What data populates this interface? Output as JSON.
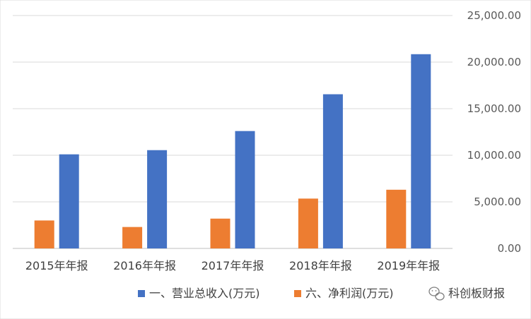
{
  "chart_data": {
    "type": "bar",
    "categories": [
      "2015年年报",
      "2016年年报",
      "2017年年报",
      "2018年年报",
      "2019年年报"
    ],
    "series": [
      {
        "name": "六、净利润(万元)",
        "color": "#ED7D31",
        "values": [
          3000,
          2300,
          3200,
          5350,
          6300
        ]
      },
      {
        "name": "一、营业总收入(万元)",
        "color": "#4472C4",
        "values": [
          10100,
          10550,
          12600,
          16550,
          20850
        ]
      }
    ],
    "yticks": [
      "0.00",
      "5,000.00",
      "10,000.00",
      "15,000.00",
      "20,000.00",
      "25,000.00"
    ],
    "ylim": [
      0,
      25000
    ],
    "grid": true,
    "y_axis_side": "right",
    "legend_position": "bottom"
  },
  "legend": {
    "items": [
      {
        "label": "一、营业总收入(万元)",
        "color": "#4472C4"
      },
      {
        "label": "六、净利润(万元)",
        "color": "#ED7D31"
      }
    ]
  },
  "watermark": {
    "text": "科创板财报",
    "icon": "wechat-icon"
  }
}
